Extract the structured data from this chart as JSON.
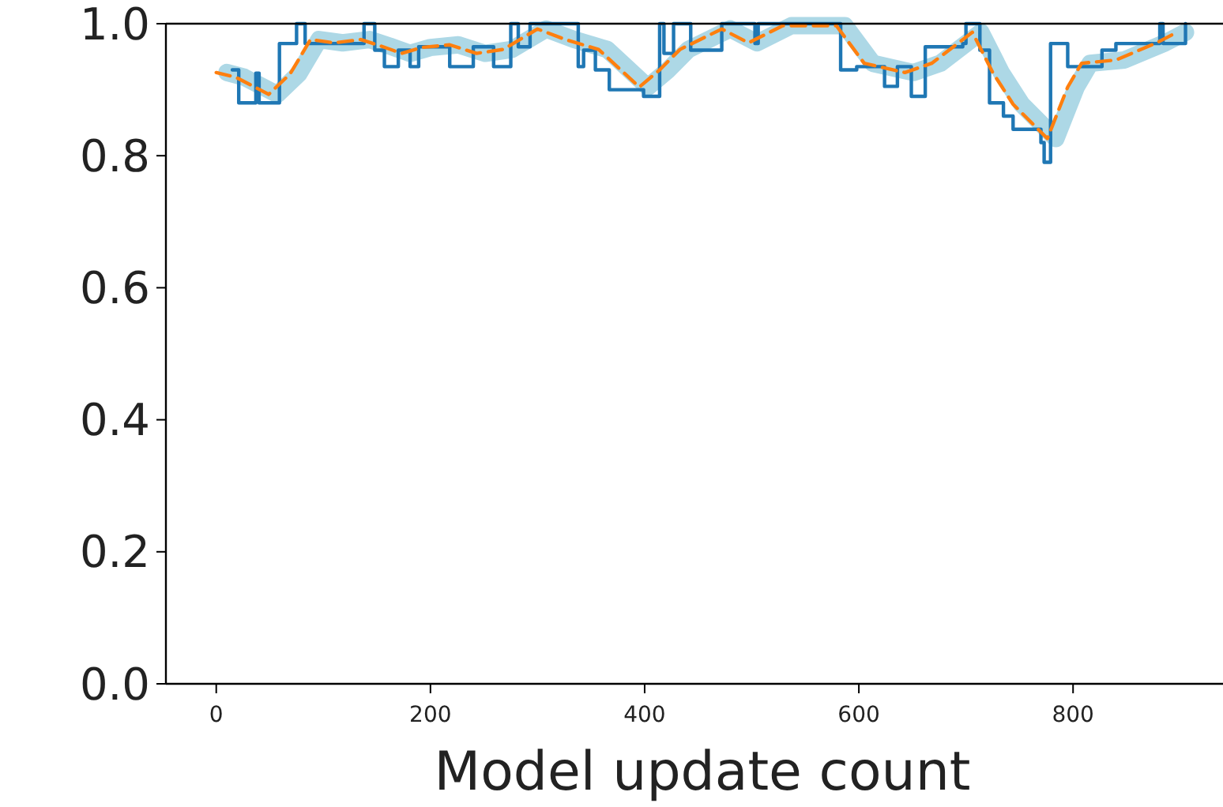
{
  "chart_data": {
    "type": "line",
    "xlabel": "Model update count",
    "xlim": [
      -47,
      940
    ],
    "xticks": [
      0,
      200,
      400,
      600,
      800
    ],
    "ylim": [
      0,
      1
    ],
    "yticks": [
      {
        "value": 0,
        "label": "0.0"
      },
      {
        "value": 0.2,
        "label": "0.2"
      },
      {
        "value": 0.4,
        "label": "0.4"
      },
      {
        "value": 0.6,
        "label": "0.6"
      },
      {
        "value": 0.8,
        "label": "0.8"
      },
      {
        "value": 1,
        "label": "1.0"
      }
    ],
    "grid": false,
    "series": [
      {
        "color": "#add8e6",
        "line_style": "solid",
        "x": [
          10,
          26,
          57,
          77,
          96,
          118,
          143,
          162,
          181,
          200,
          226,
          251,
          276,
          308,
          334,
          365,
          403,
          422,
          441,
          480,
          505,
          537,
          587,
          613,
          651,
          676,
          714,
          733,
          752,
          784,
          803,
          816,
          848,
          886,
          905
        ],
        "values": [
          0.926,
          0.919,
          0.893,
          0.924,
          0.976,
          0.971,
          0.976,
          0.966,
          0.955,
          0.964,
          0.968,
          0.955,
          0.961,
          0.992,
          0.976,
          0.961,
          0.904,
          0.93,
          0.961,
          0.992,
          0.971,
          0.997,
          0.997,
          0.94,
          0.926,
          0.94,
          0.987,
          0.926,
          0.878,
          0.826,
          0.904,
          0.94,
          0.945,
          0.971,
          0.987
        ]
      },
      {
        "type": "step",
        "color": "#1f77b4",
        "line_style": "solid",
        "x": [
          15,
          21,
          37,
          40,
          59,
          75,
          83,
          138,
          148,
          157,
          170,
          181,
          189,
          218,
          240,
          259,
          275,
          282,
          293,
          338,
          343,
          354,
          367,
          399,
          414,
          418,
          427,
          443,
          472,
          503,
          506,
          583,
          598,
          624,
          636,
          649,
          662,
          697,
          700,
          713,
          722,
          735,
          744,
          770,
          773,
          779,
          795,
          827,
          840,
          881,
          884,
          905
        ],
        "values": [
          0.93,
          0.88,
          0.925,
          0.88,
          0.97,
          1.0,
          0.97,
          1.0,
          0.96,
          0.935,
          0.96,
          0.935,
          0.965,
          0.935,
          0.965,
          0.935,
          1.0,
          0.965,
          1.0,
          0.935,
          0.96,
          0.93,
          0.9,
          0.89,
          1.0,
          0.955,
          1.0,
          0.96,
          1.0,
          0.97,
          1.0,
          0.93,
          0.935,
          0.905,
          0.935,
          0.89,
          0.965,
          0.97,
          1.0,
          0.96,
          0.88,
          0.86,
          0.84,
          0.82,
          0.79,
          0.97,
          0.935,
          0.96,
          0.97,
          1.0,
          0.97,
          1.0
        ]
      },
      {
        "color": "#ff7f0e",
        "line_style": "dashed",
        "x": [
          0,
          18,
          49,
          69,
          88,
          110,
          135,
          154,
          173,
          192,
          218,
          243,
          268,
          300,
          326,
          357,
          395,
          414,
          433,
          472,
          497,
          529,
          579,
          605,
          643,
          668,
          706,
          725,
          744,
          776,
          795,
          808,
          840,
          878,
          897
        ],
        "values": [
          0.926,
          0.919,
          0.893,
          0.924,
          0.976,
          0.971,
          0.976,
          0.966,
          0.955,
          0.964,
          0.968,
          0.955,
          0.961,
          0.992,
          0.976,
          0.961,
          0.904,
          0.93,
          0.961,
          0.992,
          0.971,
          0.997,
          0.997,
          0.94,
          0.926,
          0.94,
          0.987,
          0.926,
          0.878,
          0.826,
          0.904,
          0.94,
          0.945,
          0.971,
          0.987
        ]
      }
    ]
  }
}
